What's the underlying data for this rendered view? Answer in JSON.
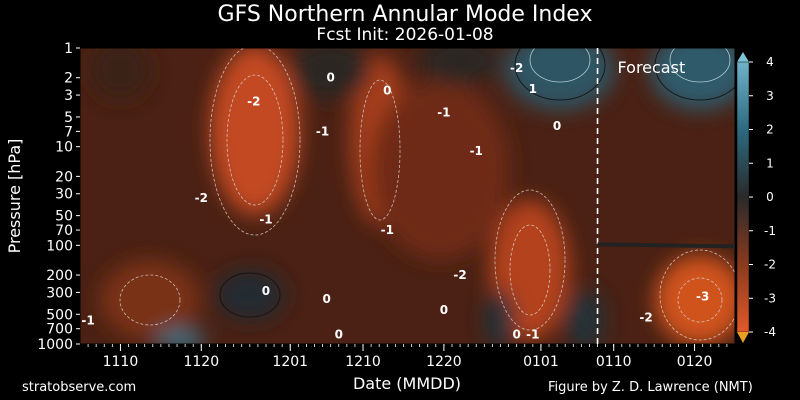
{
  "chart_data": {
    "type": "heatmap",
    "title": "GFS Northern Annular Mode Index",
    "subtitle": "Fcst Init: 2026-01-08",
    "xlabel": "Date (MMDD)",
    "ylabel": "Pressure [hPa]",
    "x_range": [
      "1105",
      "1125-01-25"
    ],
    "x_ticks": [
      {
        "label": "1110",
        "day": 5
      },
      {
        "label": "1120",
        "day": 15
      },
      {
        "label": "1201",
        "day": 26
      },
      {
        "label": "1210",
        "day": 35
      },
      {
        "label": "1220",
        "day": 45
      },
      {
        "label": "0101",
        "day": 57
      },
      {
        "label": "0110",
        "day": 66
      },
      {
        "label": "0120",
        "day": 76
      }
    ],
    "x_span_days": [
      0,
      81
    ],
    "y_ticks": [
      1,
      2,
      3,
      5,
      7,
      10,
      20,
      30,
      50,
      70,
      100,
      200,
      300,
      500,
      700,
      1000
    ],
    "ylim": [
      1000,
      1
    ],
    "colorbar": {
      "min": -4,
      "max": 4,
      "ticks": [
        4,
        3,
        2,
        1,
        0,
        -1,
        -2,
        -3,
        -4
      ],
      "low_color": "#e8a020",
      "high_color": "#7ec3d8"
    },
    "forecast_start_day": 64,
    "forecast_label": "Forecast",
    "tropopause_level_hpa": 100,
    "contour_labels": [
      {
        "text": "0",
        "day": 31,
        "p": 2
      },
      {
        "text": "0",
        "day": 38,
        "p": 2.7
      },
      {
        "text": "-2",
        "day": 21.5,
        "p": 3.5
      },
      {
        "text": "-1",
        "day": 30,
        "p": 7
      },
      {
        "text": "-1",
        "day": 45,
        "p": 4.5
      },
      {
        "text": "-1",
        "day": 49,
        "p": 11
      },
      {
        "text": "-2",
        "day": 54,
        "p": 1.6
      },
      {
        "text": "1",
        "day": 56,
        "p": 2.6
      },
      {
        "text": "0",
        "day": 59,
        "p": 6.2
      },
      {
        "text": "-2",
        "day": 15,
        "p": 33
      },
      {
        "text": "-1",
        "day": 23,
        "p": 55
      },
      {
        "text": "-1",
        "day": 38,
        "p": 70
      },
      {
        "text": "-2",
        "day": 47,
        "p": 200
      },
      {
        "text": "0",
        "day": 23,
        "p": 290
      },
      {
        "text": "0",
        "day": 30.5,
        "p": 350
      },
      {
        "text": "0",
        "day": 45,
        "p": 450
      },
      {
        "text": "0",
        "day": 32,
        "p": 800
      },
      {
        "text": "0",
        "day": 54,
        "p": 800
      },
      {
        "text": "-1",
        "day": 1,
        "p": 580
      },
      {
        "text": "-1",
        "day": 56,
        "p": 800
      },
      {
        "text": "-2",
        "day": 70,
        "p": 540
      },
      {
        "text": "-3",
        "day": 77,
        "p": 330
      }
    ],
    "nam_field_description": "Color-filled NAM index by date and pressure, values from -4 (orange) to +4 (blue)"
  },
  "credits": {
    "left": "stratobserve.com",
    "right": "Figure by Z. D. Lawrence (NMT)"
  }
}
